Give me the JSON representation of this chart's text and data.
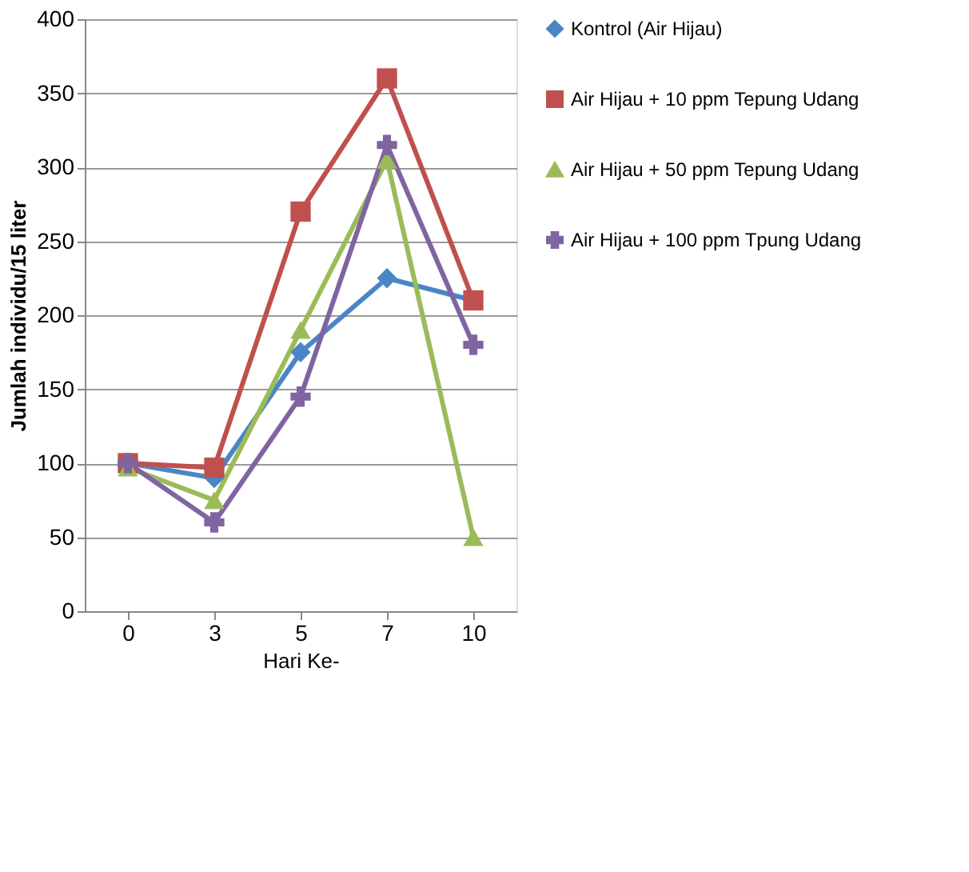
{
  "chart_data": {
    "type": "line",
    "xlabel": "Hari Ke-",
    "ylabel": "Jumlah individu/15 liter",
    "categories": [
      "0",
      "3",
      "5",
      "7",
      "10"
    ],
    "series": [
      {
        "name": "Kontrol (Air Hijau)",
        "color": "#4a86c5",
        "marker": "diamond",
        "values": [
          100,
          90,
          175,
          225,
          210
        ]
      },
      {
        "name": "Air Hijau + 10 ppm Tepung Udang",
        "color": "#c0504d",
        "marker": "square",
        "values": [
          100,
          97,
          270,
          360,
          210
        ]
      },
      {
        "name": "Air Hijau + 50 ppm Tepung Udang",
        "color": "#9bbb59",
        "marker": "triangle",
        "values": [
          97,
          75,
          190,
          305,
          50
        ]
      },
      {
        "name": "Air Hijau + 100 ppm Tpung Udang",
        "color": "#8064a2",
        "marker": "cross",
        "values": [
          100,
          60,
          145,
          315,
          180
        ]
      }
    ],
    "ylim": [
      0,
      400
    ],
    "yticks": [
      0,
      50,
      100,
      150,
      200,
      250,
      300,
      350,
      400
    ],
    "grid": "y",
    "legend": "right",
    "line_style": "solid"
  }
}
